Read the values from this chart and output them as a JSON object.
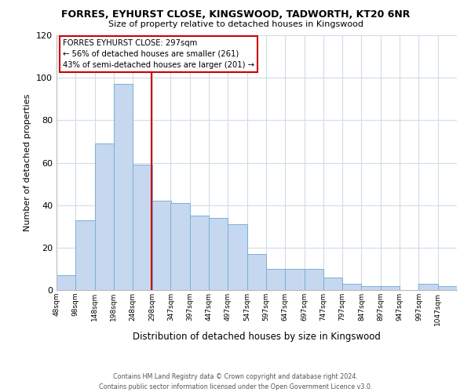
{
  "title": "FORRES, EYHURST CLOSE, KINGSWOOD, TADWORTH, KT20 6NR",
  "subtitle": "Size of property relative to detached houses in Kingswood",
  "xlabel": "Distribution of detached houses by size in Kingswood",
  "ylabel": "Number of detached properties",
  "bar_color": "#c5d8f0",
  "bar_edge_color": "#7bafd4",
  "vline_x": 297,
  "vline_color": "#cc0000",
  "bin_starts": [
    48,
    98,
    148,
    198,
    248,
    298,
    347,
    397,
    447,
    497,
    547,
    597,
    647,
    697,
    747,
    797,
    847,
    897,
    947,
    997,
    1047
  ],
  "bin_width": 50,
  "bin_labels": [
    "48sqm",
    "98sqm",
    "148sqm",
    "198sqm",
    "248sqm",
    "298sqm",
    "347sqm",
    "397sqm",
    "447sqm",
    "497sqm",
    "547sqm",
    "597sqm",
    "647sqm",
    "697sqm",
    "747sqm",
    "797sqm",
    "847sqm",
    "897sqm",
    "947sqm",
    "997sqm",
    "1047sqm"
  ],
  "counts": [
    7,
    33,
    69,
    97,
    59,
    42,
    41,
    35,
    34,
    31,
    17,
    10,
    10,
    10,
    6,
    3,
    2,
    2,
    0,
    3,
    2
  ],
  "ylim": [
    0,
    120
  ],
  "yticks": [
    0,
    20,
    40,
    60,
    80,
    100,
    120
  ],
  "annotation_title": "FORRES EYHURST CLOSE: 297sqm",
  "annotation_line1": "← 56% of detached houses are smaller (261)",
  "annotation_line2": "43% of semi-detached houses are larger (201) →",
  "annotation_box_color": "#ffffff",
  "annotation_box_edge": "#cc0000",
  "footer_line1": "Contains HM Land Registry data © Crown copyright and database right 2024.",
  "footer_line2": "Contains public sector information licensed under the Open Government Licence v3.0.",
  "background_color": "#ffffff",
  "grid_color": "#d0dce8"
}
